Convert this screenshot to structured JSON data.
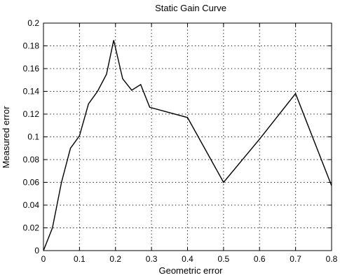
{
  "chart_data": {
    "type": "line",
    "title": "Static Gain Curve",
    "xlabel": "Geometric error",
    "ylabel": "Measured error",
    "xlim": [
      0,
      0.8
    ],
    "ylim": [
      0,
      0.2
    ],
    "x_ticks": [
      "0",
      "0.1",
      "0.2",
      "0.3",
      "0.4",
      "0.5",
      "0.6",
      "0.7",
      "0.8"
    ],
    "y_ticks": [
      "0",
      "0.02",
      "0.04",
      "0.06",
      "0.08",
      "0.1",
      "0.12",
      "0.14",
      "0.16",
      "0.18",
      "0.2"
    ],
    "grid": true,
    "grid_style": "dotted",
    "line_color": "#000000",
    "series": [
      {
        "x": [
          0,
          0.025,
          0.05,
          0.075,
          0.1,
          0.125,
          0.15,
          0.175,
          0.195,
          0.22,
          0.245,
          0.27,
          0.295,
          0.4,
          0.5,
          0.6,
          0.7,
          0.8
        ],
        "y": [
          0,
          0.02,
          0.06,
          0.09,
          0.101,
          0.129,
          0.14,
          0.155,
          0.185,
          0.151,
          0.141,
          0.146,
          0.126,
          0.117,
          0.06,
          0.098,
          0.138,
          0.057
        ]
      }
    ]
  }
}
